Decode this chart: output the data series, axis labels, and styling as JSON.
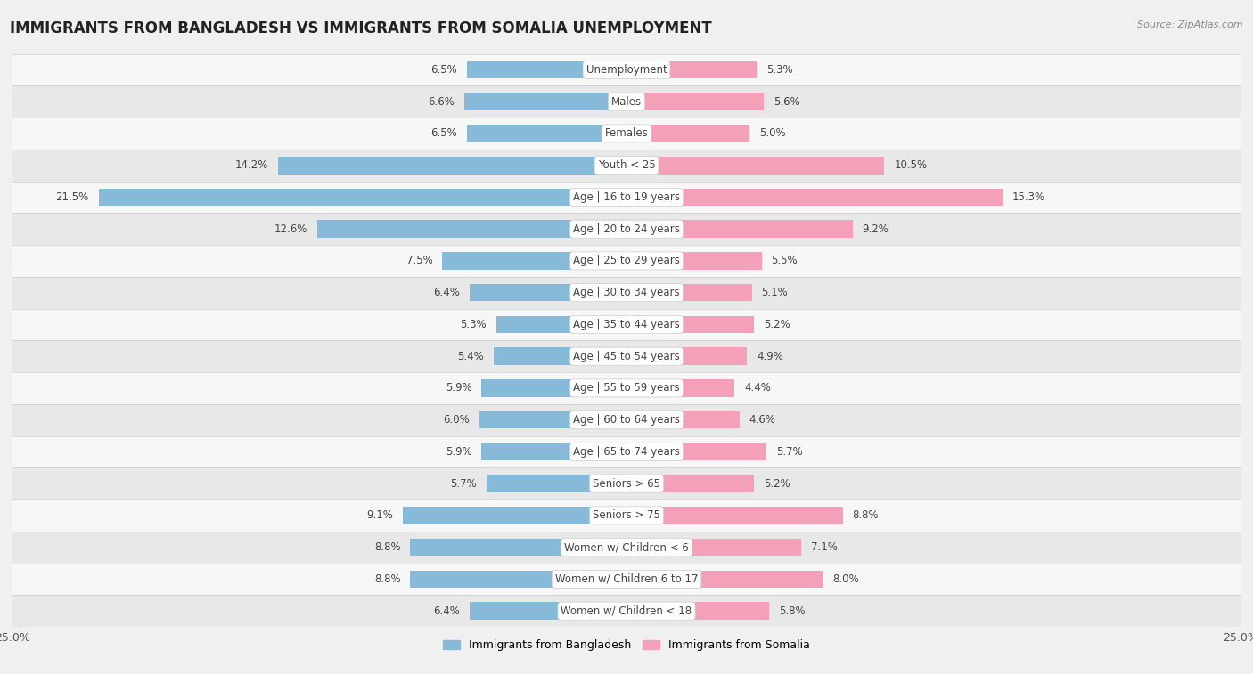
{
  "title": "IMMIGRANTS FROM BANGLADESH VS IMMIGRANTS FROM SOMALIA UNEMPLOYMENT",
  "source": "Source: ZipAtlas.com",
  "categories": [
    "Unemployment",
    "Males",
    "Females",
    "Youth < 25",
    "Age | 16 to 19 years",
    "Age | 20 to 24 years",
    "Age | 25 to 29 years",
    "Age | 30 to 34 years",
    "Age | 35 to 44 years",
    "Age | 45 to 54 years",
    "Age | 55 to 59 years",
    "Age | 60 to 64 years",
    "Age | 65 to 74 years",
    "Seniors > 65",
    "Seniors > 75",
    "Women w/ Children < 6",
    "Women w/ Children 6 to 17",
    "Women w/ Children < 18"
  ],
  "bangladesh_values": [
    6.5,
    6.6,
    6.5,
    14.2,
    21.5,
    12.6,
    7.5,
    6.4,
    5.3,
    5.4,
    5.9,
    6.0,
    5.9,
    5.7,
    9.1,
    8.8,
    8.8,
    6.4
  ],
  "somalia_values": [
    5.3,
    5.6,
    5.0,
    10.5,
    15.3,
    9.2,
    5.5,
    5.1,
    5.2,
    4.9,
    4.4,
    4.6,
    5.7,
    5.2,
    8.8,
    7.1,
    8.0,
    5.8
  ],
  "bangladesh_color": "#87b9d8",
  "somalia_color": "#f4a0b8",
  "bangladesh_label": "Immigrants from Bangladesh",
  "somalia_label": "Immigrants from Somalia",
  "xlim": 25.0,
  "bar_height": 0.55,
  "bg_color": "#f0f0f0",
  "row_colors_even": "#f7f7f7",
  "row_colors_odd": "#e8e8e8",
  "title_fontsize": 12,
  "label_fontsize": 8.5,
  "value_fontsize": 8.5
}
